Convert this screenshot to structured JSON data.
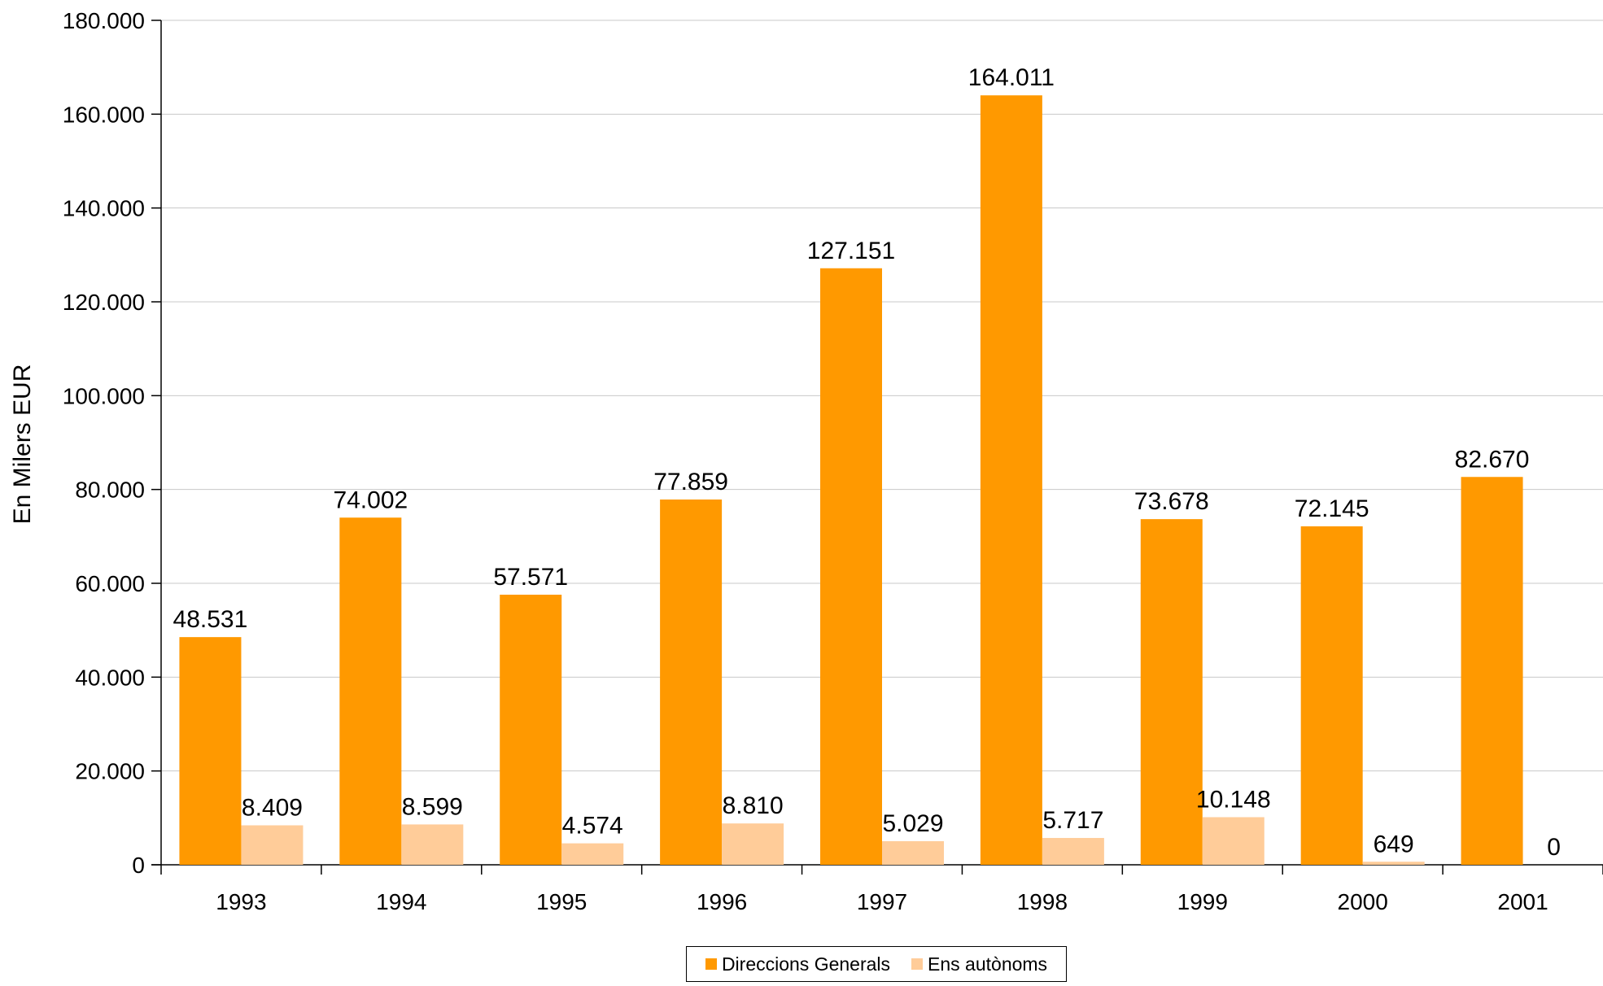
{
  "chart_data": {
    "type": "bar",
    "title": "",
    "xlabel": "",
    "ylabel": "En Milers EUR",
    "ylim": [
      0,
      180000
    ],
    "yticks": [
      0,
      20000,
      40000,
      60000,
      80000,
      100000,
      120000,
      140000,
      160000,
      180000
    ],
    "ytick_labels": [
      "0",
      "20.000",
      "40.000",
      "60.000",
      "80.000",
      "100.000",
      "120.000",
      "140.000",
      "160.000",
      "180.000"
    ],
    "grid": true,
    "legend_position": "bottom-center",
    "categories": [
      "1993",
      "1994",
      "1995",
      "1996",
      "1997",
      "1998",
      "1999",
      "2000",
      "2001"
    ],
    "series": [
      {
        "name": "Direccions Generals",
        "color": "#FF9900",
        "values": [
          48531,
          74002,
          57571,
          77859,
          127151,
          164011,
          73678,
          72145,
          82670
        ],
        "labels": [
          "48.531",
          "74.002",
          "57.571",
          "77.859",
          "127.151",
          "164.011",
          "73.678",
          "72.145",
          "82.670"
        ]
      },
      {
        "name": "Ens autònoms",
        "color": "#FFCC99",
        "values": [
          8409,
          8599,
          4574,
          8810,
          5029,
          5717,
          10148,
          649,
          0
        ],
        "labels": [
          "8.409",
          "8.599",
          "4.574",
          "8.810",
          "5.029",
          "5.717",
          "10.148",
          "649",
          "0"
        ]
      }
    ]
  }
}
